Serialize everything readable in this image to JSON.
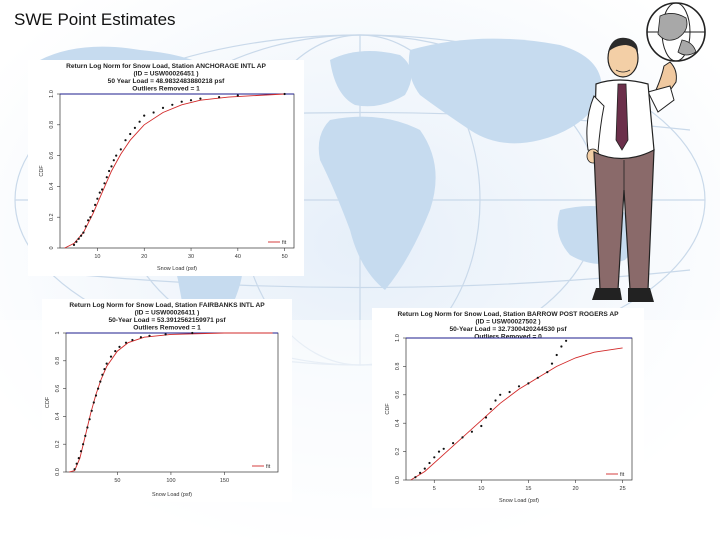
{
  "page": {
    "title": "SWE Point Estimates"
  },
  "colors": {
    "fit": "#d22a2a",
    "points": "#111111",
    "hline": "#1c1c8c",
    "map": "#c4d9ee",
    "ocean": "#eef4fb"
  },
  "chart_data": [
    {
      "type": "scatter",
      "title_lines": [
        "Return Log Norm for Snow Load, Station ANCHORAGE INTL AP",
        "(ID = USW00026451 )",
        "50 Year Load = 48.9832483880218 psf",
        "Outliers Removed = 1"
      ],
      "xlabel": "Snow Load (psf)",
      "ylabel": "CDF",
      "xlim": [
        2,
        52
      ],
      "ylim": [
        0,
        1
      ],
      "xticks": [
        10,
        20,
        30,
        40,
        50
      ],
      "yticks": [
        "0",
        "0.2",
        "0.4",
        "0.6",
        "0.8",
        "1.0"
      ],
      "legend": "fit",
      "points": [
        [
          5,
          0.02
        ],
        [
          5.5,
          0.04
        ],
        [
          6,
          0.06
        ],
        [
          6.5,
          0.08
        ],
        [
          7,
          0.1
        ],
        [
          7.5,
          0.14
        ],
        [
          8,
          0.18
        ],
        [
          8.5,
          0.2
        ],
        [
          9,
          0.24
        ],
        [
          9.5,
          0.28
        ],
        [
          10,
          0.32
        ],
        [
          10.5,
          0.36
        ],
        [
          11,
          0.38
        ],
        [
          11.5,
          0.42
        ],
        [
          12,
          0.46
        ],
        [
          12.5,
          0.5
        ],
        [
          13,
          0.53
        ],
        [
          13.5,
          0.57
        ],
        [
          14,
          0.6
        ],
        [
          15,
          0.64
        ],
        [
          16,
          0.7
        ],
        [
          17,
          0.74
        ],
        [
          18,
          0.78
        ],
        [
          19,
          0.82
        ],
        [
          20,
          0.86
        ],
        [
          22,
          0.88
        ],
        [
          24,
          0.91
        ],
        [
          26,
          0.93
        ],
        [
          28,
          0.95
        ],
        [
          30,
          0.96
        ],
        [
          32,
          0.97
        ],
        [
          36,
          0.98
        ],
        [
          40,
          0.99
        ],
        [
          50,
          1.0
        ]
      ],
      "fit": [
        [
          3,
          0.0
        ],
        [
          5,
          0.03
        ],
        [
          7,
          0.1
        ],
        [
          9,
          0.22
        ],
        [
          11,
          0.36
        ],
        [
          13,
          0.5
        ],
        [
          15,
          0.61
        ],
        [
          17,
          0.7
        ],
        [
          20,
          0.8
        ],
        [
          24,
          0.88
        ],
        [
          28,
          0.93
        ],
        [
          32,
          0.96
        ],
        [
          38,
          0.98
        ],
        [
          44,
          0.99
        ],
        [
          50,
          1.0
        ]
      ]
    },
    {
      "type": "scatter",
      "title_lines": [
        "Return Log Norm for Snow Load, Station FAIRBANKS INTL AP",
        "(ID = USW00026411 )",
        "50-Year Load = 53.3912562159971 psf",
        "Outliers Removed = 1"
      ],
      "xlabel": "Snow Load (psf)",
      "ylabel": "CDF",
      "xlim": [
        2,
        200
      ],
      "ylim": [
        0,
        1
      ],
      "xticks": [
        50,
        100,
        150
      ],
      "yticks": [
        "0.0",
        "0.2",
        "0.4",
        "0.6",
        "0.8",
        "1"
      ],
      "legend": "fit",
      "points": [
        [
          10,
          0.02
        ],
        [
          12,
          0.06
        ],
        [
          14,
          0.1
        ],
        [
          16,
          0.15
        ],
        [
          18,
          0.2
        ],
        [
          20,
          0.26
        ],
        [
          22,
          0.32
        ],
        [
          24,
          0.38
        ],
        [
          26,
          0.44
        ],
        [
          28,
          0.5
        ],
        [
          30,
          0.55
        ],
        [
          32,
          0.6
        ],
        [
          34,
          0.65
        ],
        [
          36,
          0.7
        ],
        [
          38,
          0.74
        ],
        [
          40,
          0.78
        ],
        [
          44,
          0.83
        ],
        [
          48,
          0.87
        ],
        [
          52,
          0.9
        ],
        [
          58,
          0.93
        ],
        [
          64,
          0.95
        ],
        [
          72,
          0.97
        ],
        [
          80,
          0.98
        ],
        [
          95,
          0.99
        ],
        [
          120,
          1.0
        ]
      ],
      "fit": [
        [
          5,
          0.0
        ],
        [
          10,
          0.01
        ],
        [
          15,
          0.1
        ],
        [
          20,
          0.26
        ],
        [
          25,
          0.42
        ],
        [
          30,
          0.56
        ],
        [
          35,
          0.67
        ],
        [
          40,
          0.76
        ],
        [
          50,
          0.87
        ],
        [
          60,
          0.93
        ],
        [
          75,
          0.97
        ],
        [
          100,
          0.99
        ],
        [
          150,
          1.0
        ],
        [
          195,
          1.0
        ]
      ]
    },
    {
      "type": "scatter",
      "title_lines": [
        "Return Log Norm for Snow Load, Station BARROW POST ROGERS AP",
        "(ID = USW00027502 )",
        "50-Year Load = 32.7300420244530 psf",
        "Outliers Removed = 0"
      ],
      "xlabel": "Snow Load (psf)",
      "ylabel": "CDF",
      "xlim": [
        2,
        26
      ],
      "ylim": [
        0,
        1
      ],
      "xticks": [
        5,
        10,
        15,
        20,
        25
      ],
      "yticks": [
        "0.0",
        "0.2",
        "0.4",
        "0.6",
        "0.8",
        "1.0"
      ],
      "legend": "fit",
      "points": [
        [
          3,
          0.02
        ],
        [
          3.5,
          0.05
        ],
        [
          4,
          0.08
        ],
        [
          4.5,
          0.12
        ],
        [
          5,
          0.16
        ],
        [
          5.5,
          0.2
        ],
        [
          6,
          0.22
        ],
        [
          7,
          0.26
        ],
        [
          8,
          0.3
        ],
        [
          9,
          0.34
        ],
        [
          10,
          0.38
        ],
        [
          10.5,
          0.44
        ],
        [
          11,
          0.5
        ],
        [
          11.5,
          0.56
        ],
        [
          12,
          0.6
        ],
        [
          13,
          0.62
        ],
        [
          14,
          0.66
        ],
        [
          15,
          0.68
        ],
        [
          16,
          0.72
        ],
        [
          17,
          0.76
        ],
        [
          17.5,
          0.82
        ],
        [
          18,
          0.88
        ],
        [
          18.5,
          0.94
        ],
        [
          19,
          0.98
        ]
      ],
      "fit": [
        [
          2.5,
          0.0
        ],
        [
          4,
          0.06
        ],
        [
          6,
          0.18
        ],
        [
          8,
          0.3
        ],
        [
          10,
          0.42
        ],
        [
          12,
          0.54
        ],
        [
          14,
          0.64
        ],
        [
          16,
          0.72
        ],
        [
          18,
          0.8
        ],
        [
          20,
          0.86
        ],
        [
          22,
          0.9
        ],
        [
          25,
          0.93
        ]
      ]
    }
  ]
}
